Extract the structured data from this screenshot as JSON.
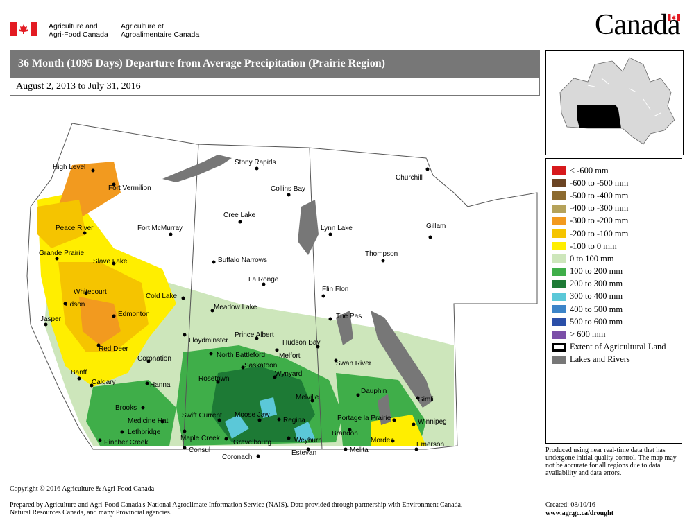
{
  "header": {
    "dept_en_line1": "Agriculture and",
    "dept_en_line2": "Agri-Food Canada",
    "dept_fr_line1": "Agriculture et",
    "dept_fr_line2": "Agroalimentaire Canada",
    "wordmark": "Canada"
  },
  "title": "36 Month (1095 Days) Departure from Average Precipitation (Prairie Region)",
  "date_range": "August 2, 2013 to July 31, 2016",
  "legend": [
    {
      "label": "< -600 mm",
      "color": "#d7191c"
    },
    {
      "label": "-600 to -500 mm",
      "color": "#6b4423"
    },
    {
      "label": "-500 to -400 mm",
      "color": "#8c6a2f"
    },
    {
      "label": "-400 to -300 mm",
      "color": "#b5a25a"
    },
    {
      "label": "-300 to -200 mm",
      "color": "#f29a1f"
    },
    {
      "label": "-200 to -100 mm",
      "color": "#f5c400"
    },
    {
      "label": "-100 to 0 mm",
      "color": "#ffee00"
    },
    {
      "label": "0 to 100 mm",
      "color": "#cde6bb"
    },
    {
      "label": "100 to 200 mm",
      "color": "#3fae49"
    },
    {
      "label": "200 to 300 mm",
      "color": "#1d7a35"
    },
    {
      "label": "300 to 400 mm",
      "color": "#5bc8d8"
    },
    {
      "label": "400 to 500 mm",
      "color": "#3c84c8"
    },
    {
      "label": "500 to 600 mm",
      "color": "#2b4fa8"
    },
    {
      "label": "> 600 mm",
      "color": "#7b4fa8"
    },
    {
      "label": "Extent of Agricultural Land",
      "color": "#000000"
    },
    {
      "label": "Lakes and Rivers",
      "color": "#777777"
    }
  ],
  "cities": [
    {
      "name": "High Level"
    },
    {
      "name": "Fort Vermilion"
    },
    {
      "name": "Fort McMurray"
    },
    {
      "name": "Peace River"
    },
    {
      "name": "Grande Prairie"
    },
    {
      "name": "Slave Lake"
    },
    {
      "name": "Whitecourt"
    },
    {
      "name": "Edson"
    },
    {
      "name": "Cold Lake"
    },
    {
      "name": "Jasper"
    },
    {
      "name": "Edmonton"
    },
    {
      "name": "Red Deer"
    },
    {
      "name": "Lloydminster"
    },
    {
      "name": "Coronation"
    },
    {
      "name": "Banff"
    },
    {
      "name": "Calgary"
    },
    {
      "name": "Hanna"
    },
    {
      "name": "Brooks"
    },
    {
      "name": "Medicine Hat"
    },
    {
      "name": "Lethbridge"
    },
    {
      "name": "Pincher Creek"
    },
    {
      "name": "Stony Rapids"
    },
    {
      "name": "Collins Bay"
    },
    {
      "name": "Cree Lake"
    },
    {
      "name": "Buffalo Narrows"
    },
    {
      "name": "La Ronge"
    },
    {
      "name": "Meadow Lake"
    },
    {
      "name": "Prince Albert"
    },
    {
      "name": "North Battleford"
    },
    {
      "name": "Melfort"
    },
    {
      "name": "Hudson Bay"
    },
    {
      "name": "Saskatoon"
    },
    {
      "name": "Wynyard"
    },
    {
      "name": "Rosetown"
    },
    {
      "name": "Swift Current"
    },
    {
      "name": "Moose Jaw"
    },
    {
      "name": "Regina"
    },
    {
      "name": "Melville"
    },
    {
      "name": "Maple Creek"
    },
    {
      "name": "Consul"
    },
    {
      "name": "Gravelbourg"
    },
    {
      "name": "Coronach"
    },
    {
      "name": "Weyburn"
    },
    {
      "name": "Estevan"
    },
    {
      "name": "Churchill"
    },
    {
      "name": "Lynn Lake"
    },
    {
      "name": "Gillam"
    },
    {
      "name": "Thompson"
    },
    {
      "name": "Flin Flon"
    },
    {
      "name": "The Pas"
    },
    {
      "name": "Swan River"
    },
    {
      "name": "Dauphin"
    },
    {
      "name": "Gimli"
    },
    {
      "name": "Portage la Prairie"
    },
    {
      "name": "Winnipeg"
    },
    {
      "name": "Brandon"
    },
    {
      "name": "Morden"
    },
    {
      "name": "Melita"
    },
    {
      "name": "Emerson"
    }
  ],
  "note": "Produced using near real-time data that has undergone initial quality control.  The map may not be accurate for all regions due to data availability and data errors.",
  "copyright": "Copyright © 2016 Agriculture & Agri-Food Canada",
  "footer": {
    "prepared": "Prepared by Agriculture and Agri-Food Canada's National Agroclimate Information Service (NAIS).   Data provided through partnership with Environment Canada, Natural Resources Canada, and many Provincial agencies.",
    "created": "Created: 08/10/16",
    "url": "www.agr.gc.ca/drought"
  }
}
